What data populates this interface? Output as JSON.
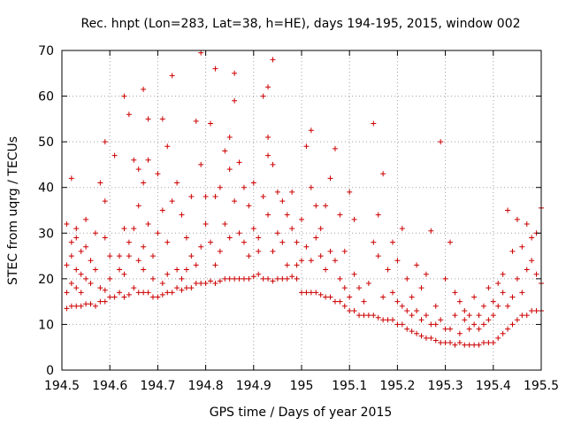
{
  "chart_data": {
    "type": "scatter",
    "title": "Rec. hnpt (Lon=283, Lat=38, h=HE), days 194-195, 2015, window 002",
    "xlabel": "GPS time / Days of year 2015",
    "ylabel": "STEC from uqrg / TECUs",
    "xlim": [
      194.5,
      195.5
    ],
    "ylim": [
      0,
      70
    ],
    "xticks": [
      "194.5",
      "194.6",
      "194.7",
      "194.8",
      "194.9",
      "195",
      "195.1",
      "195.2",
      "195.3",
      "195.4",
      "195.5"
    ],
    "yticks": [
      "0",
      "10",
      "20",
      "30",
      "40",
      "50",
      "60",
      "70"
    ],
    "grid": true,
    "marker": "+",
    "color": "#cc0000",
    "points": [
      [
        194.51,
        13.5
      ],
      [
        194.51,
        17
      ],
      [
        194.51,
        23
      ],
      [
        194.51,
        32
      ],
      [
        194.52,
        14
      ],
      [
        194.52,
        19
      ],
      [
        194.52,
        25
      ],
      [
        194.52,
        28
      ],
      [
        194.52,
        42
      ],
      [
        194.53,
        14
      ],
      [
        194.53,
        18
      ],
      [
        194.53,
        22
      ],
      [
        194.53,
        29
      ],
      [
        194.53,
        31
      ],
      [
        194.54,
        14
      ],
      [
        194.54,
        17
      ],
      [
        194.54,
        21
      ],
      [
        194.54,
        26
      ],
      [
        194.55,
        14.5
      ],
      [
        194.55,
        20
      ],
      [
        194.55,
        27
      ],
      [
        194.55,
        33
      ],
      [
        194.56,
        14.5
      ],
      [
        194.56,
        19
      ],
      [
        194.56,
        24
      ],
      [
        194.57,
        14
      ],
      [
        194.57,
        22
      ],
      [
        194.57,
        30
      ],
      [
        194.58,
        15
      ],
      [
        194.58,
        18
      ],
      [
        194.58,
        41
      ],
      [
        194.59,
        15
      ],
      [
        194.59,
        17.5
      ],
      [
        194.59,
        29
      ],
      [
        194.59,
        37
      ],
      [
        194.59,
        50
      ],
      [
        194.6,
        16
      ],
      [
        194.6,
        20
      ],
      [
        194.6,
        25
      ],
      [
        194.61,
        16
      ],
      [
        194.61,
        47
      ],
      [
        194.62,
        17
      ],
      [
        194.62,
        22
      ],
      [
        194.62,
        25
      ],
      [
        194.63,
        16
      ],
      [
        194.63,
        21
      ],
      [
        194.63,
        31
      ],
      [
        194.63,
        60
      ],
      [
        194.64,
        16.5
      ],
      [
        194.64,
        25
      ],
      [
        194.64,
        28
      ],
      [
        194.64,
        56
      ],
      [
        194.65,
        18
      ],
      [
        194.65,
        31
      ],
      [
        194.65,
        46
      ],
      [
        194.66,
        17
      ],
      [
        194.66,
        24
      ],
      [
        194.66,
        36
      ],
      [
        194.66,
        44
      ],
      [
        194.67,
        17
      ],
      [
        194.67,
        22
      ],
      [
        194.67,
        27
      ],
      [
        194.67,
        41
      ],
      [
        194.67,
        61.5
      ],
      [
        194.68,
        17
      ],
      [
        194.68,
        32
      ],
      [
        194.68,
        46
      ],
      [
        194.68,
        55
      ],
      [
        194.69,
        16
      ],
      [
        194.69,
        20
      ],
      [
        194.69,
        25
      ],
      [
        194.7,
        16
      ],
      [
        194.7,
        30
      ],
      [
        194.7,
        43
      ],
      [
        194.71,
        16.5
      ],
      [
        194.71,
        19
      ],
      [
        194.71,
        35
      ],
      [
        194.71,
        55
      ],
      [
        194.72,
        17
      ],
      [
        194.72,
        21
      ],
      [
        194.72,
        28
      ],
      [
        194.72,
        49
      ],
      [
        194.73,
        17
      ],
      [
        194.73,
        37
      ],
      [
        194.73,
        64.5
      ],
      [
        194.74,
        18
      ],
      [
        194.74,
        22
      ],
      [
        194.74,
        41
      ],
      [
        194.75,
        17.5
      ],
      [
        194.75,
        20
      ],
      [
        194.75,
        34
      ],
      [
        194.76,
        18
      ],
      [
        194.76,
        22
      ],
      [
        194.76,
        29
      ],
      [
        194.77,
        18
      ],
      [
        194.77,
        25
      ],
      [
        194.77,
        38
      ],
      [
        194.78,
        19
      ],
      [
        194.78,
        23
      ],
      [
        194.78,
        54.5
      ],
      [
        194.79,
        19
      ],
      [
        194.79,
        27
      ],
      [
        194.79,
        45
      ],
      [
        194.79,
        69.5
      ],
      [
        194.8,
        19
      ],
      [
        194.8,
        32
      ],
      [
        194.8,
        38
      ],
      [
        194.81,
        19.5
      ],
      [
        194.81,
        28
      ],
      [
        194.81,
        54
      ],
      [
        194.82,
        19
      ],
      [
        194.82,
        23
      ],
      [
        194.82,
        38
      ],
      [
        194.82,
        66
      ],
      [
        194.83,
        19.5
      ],
      [
        194.83,
        26
      ],
      [
        194.83,
        40
      ],
      [
        194.84,
        20
      ],
      [
        194.84,
        32
      ],
      [
        194.84,
        48
      ],
      [
        194.85,
        20
      ],
      [
        194.85,
        29
      ],
      [
        194.85,
        44
      ],
      [
        194.85,
        51
      ],
      [
        194.86,
        20
      ],
      [
        194.86,
        37
      ],
      [
        194.86,
        59
      ],
      [
        194.86,
        65
      ],
      [
        194.87,
        20
      ],
      [
        194.87,
        30
      ],
      [
        194.87,
        45.5
      ],
      [
        194.88,
        20
      ],
      [
        194.88,
        28
      ],
      [
        194.88,
        40
      ],
      [
        194.89,
        20
      ],
      [
        194.89,
        25
      ],
      [
        194.89,
        36
      ],
      [
        194.9,
        20.5
      ],
      [
        194.9,
        31
      ],
      [
        194.9,
        41
      ],
      [
        194.91,
        21
      ],
      [
        194.91,
        26
      ],
      [
        194.91,
        29
      ],
      [
        194.92,
        20
      ],
      [
        194.92,
        38
      ],
      [
        194.92,
        60
      ],
      [
        194.93,
        20
      ],
      [
        194.93,
        34
      ],
      [
        194.93,
        47
      ],
      [
        194.93,
        51
      ],
      [
        194.93,
        62
      ],
      [
        194.94,
        19.5
      ],
      [
        194.94,
        26
      ],
      [
        194.94,
        45
      ],
      [
        194.94,
        68
      ],
      [
        194.95,
        20
      ],
      [
        194.95,
        30
      ],
      [
        194.95,
        39
      ],
      [
        194.96,
        20
      ],
      [
        194.96,
        28
      ],
      [
        194.96,
        37
      ],
      [
        194.97,
        20
      ],
      [
        194.97,
        23
      ],
      [
        194.97,
        34
      ],
      [
        194.98,
        20.5
      ],
      [
        194.98,
        31
      ],
      [
        194.98,
        39
      ],
      [
        194.99,
        20
      ],
      [
        194.99,
        23
      ],
      [
        194.99,
        28
      ],
      [
        195.0,
        17
      ],
      [
        195.0,
        24
      ],
      [
        195.0,
        33
      ],
      [
        195.01,
        17
      ],
      [
        195.01,
        27
      ],
      [
        195.01,
        49
      ],
      [
        195.02,
        17
      ],
      [
        195.02,
        24
      ],
      [
        195.02,
        40
      ],
      [
        195.02,
        52.5
      ],
      [
        195.03,
        17
      ],
      [
        195.03,
        29
      ],
      [
        195.03,
        36
      ],
      [
        195.04,
        16.5
      ],
      [
        195.04,
        25
      ],
      [
        195.04,
        31
      ],
      [
        195.05,
        16
      ],
      [
        195.05,
        22
      ],
      [
        195.05,
        36
      ],
      [
        195.06,
        16
      ],
      [
        195.06,
        26
      ],
      [
        195.06,
        42
      ],
      [
        195.07,
        15
      ],
      [
        195.07,
        24
      ],
      [
        195.07,
        48.5
      ],
      [
        195.08,
        15
      ],
      [
        195.08,
        20
      ],
      [
        195.08,
        34
      ],
      [
        195.09,
        14
      ],
      [
        195.09,
        18
      ],
      [
        195.09,
        26
      ],
      [
        195.1,
        13
      ],
      [
        195.1,
        16
      ],
      [
        195.1,
        39
      ],
      [
        195.11,
        13
      ],
      [
        195.11,
        21
      ],
      [
        195.11,
        33
      ],
      [
        195.12,
        12
      ],
      [
        195.12,
        18
      ],
      [
        195.13,
        12
      ],
      [
        195.13,
        15
      ],
      [
        195.14,
        12
      ],
      [
        195.14,
        19
      ],
      [
        195.15,
        12
      ],
      [
        195.15,
        28
      ],
      [
        195.15,
        54
      ],
      [
        195.16,
        11.5
      ],
      [
        195.16,
        25
      ],
      [
        195.16,
        34
      ],
      [
        195.17,
        11
      ],
      [
        195.17,
        16
      ],
      [
        195.17,
        43
      ],
      [
        195.18,
        11
      ],
      [
        195.18,
        22
      ],
      [
        195.19,
        11
      ],
      [
        195.19,
        17
      ],
      [
        195.19,
        28
      ],
      [
        195.2,
        10
      ],
      [
        195.2,
        15
      ],
      [
        195.2,
        24
      ],
      [
        195.21,
        10
      ],
      [
        195.21,
        14
      ],
      [
        195.21,
        31
      ],
      [
        195.22,
        9
      ],
      [
        195.22,
        13
      ],
      [
        195.22,
        20
      ],
      [
        195.23,
        8.5
      ],
      [
        195.23,
        12
      ],
      [
        195.23,
        16
      ],
      [
        195.24,
        8
      ],
      [
        195.24,
        13
      ],
      [
        195.24,
        23
      ],
      [
        195.25,
        7.5
      ],
      [
        195.25,
        11
      ],
      [
        195.25,
        18
      ],
      [
        195.26,
        7
      ],
      [
        195.26,
        12
      ],
      [
        195.26,
        21
      ],
      [
        195.27,
        7
      ],
      [
        195.27,
        10
      ],
      [
        195.27,
        30.5
      ],
      [
        195.28,
        6.5
      ],
      [
        195.28,
        10
      ],
      [
        195.28,
        14
      ],
      [
        195.29,
        6
      ],
      [
        195.29,
        11
      ],
      [
        195.29,
        50
      ],
      [
        195.3,
        6
      ],
      [
        195.3,
        9
      ],
      [
        195.3,
        20
      ],
      [
        195.31,
        6
      ],
      [
        195.31,
        9
      ],
      [
        195.31,
        28
      ],
      [
        195.32,
        5.5
      ],
      [
        195.32,
        12
      ],
      [
        195.32,
        17
      ],
      [
        195.33,
        6
      ],
      [
        195.33,
        8
      ],
      [
        195.33,
        15
      ],
      [
        195.34,
        5.5
      ],
      [
        195.34,
        11
      ],
      [
        195.34,
        13
      ],
      [
        195.35,
        5.5
      ],
      [
        195.35,
        9
      ],
      [
        195.35,
        12
      ],
      [
        195.36,
        5.5
      ],
      [
        195.36,
        10
      ],
      [
        195.36,
        16
      ],
      [
        195.37,
        5.5
      ],
      [
        195.37,
        9
      ],
      [
        195.37,
        12
      ],
      [
        195.38,
        6
      ],
      [
        195.38,
        10
      ],
      [
        195.38,
        14
      ],
      [
        195.39,
        6
      ],
      [
        195.39,
        11
      ],
      [
        195.39,
        18
      ],
      [
        195.4,
        6
      ],
      [
        195.4,
        12
      ],
      [
        195.4,
        15
      ],
      [
        195.41,
        7
      ],
      [
        195.41,
        14
      ],
      [
        195.41,
        19
      ],
      [
        195.42,
        8
      ],
      [
        195.42,
        17
      ],
      [
        195.42,
        21
      ],
      [
        195.43,
        9
      ],
      [
        195.43,
        14
      ],
      [
        195.43,
        35
      ],
      [
        195.44,
        10
      ],
      [
        195.44,
        16
      ],
      [
        195.44,
        26
      ],
      [
        195.45,
        11
      ],
      [
        195.45,
        20
      ],
      [
        195.45,
        33
      ],
      [
        195.46,
        12
      ],
      [
        195.46,
        17
      ],
      [
        195.46,
        27
      ],
      [
        195.47,
        12
      ],
      [
        195.47,
        22
      ],
      [
        195.47,
        32
      ],
      [
        195.48,
        13
      ],
      [
        195.48,
        24
      ],
      [
        195.48,
        29
      ],
      [
        195.49,
        13
      ],
      [
        195.49,
        21
      ],
      [
        195.49,
        30
      ],
      [
        195.5,
        13
      ],
      [
        195.5,
        19
      ],
      [
        195.5,
        35.5
      ]
    ]
  }
}
